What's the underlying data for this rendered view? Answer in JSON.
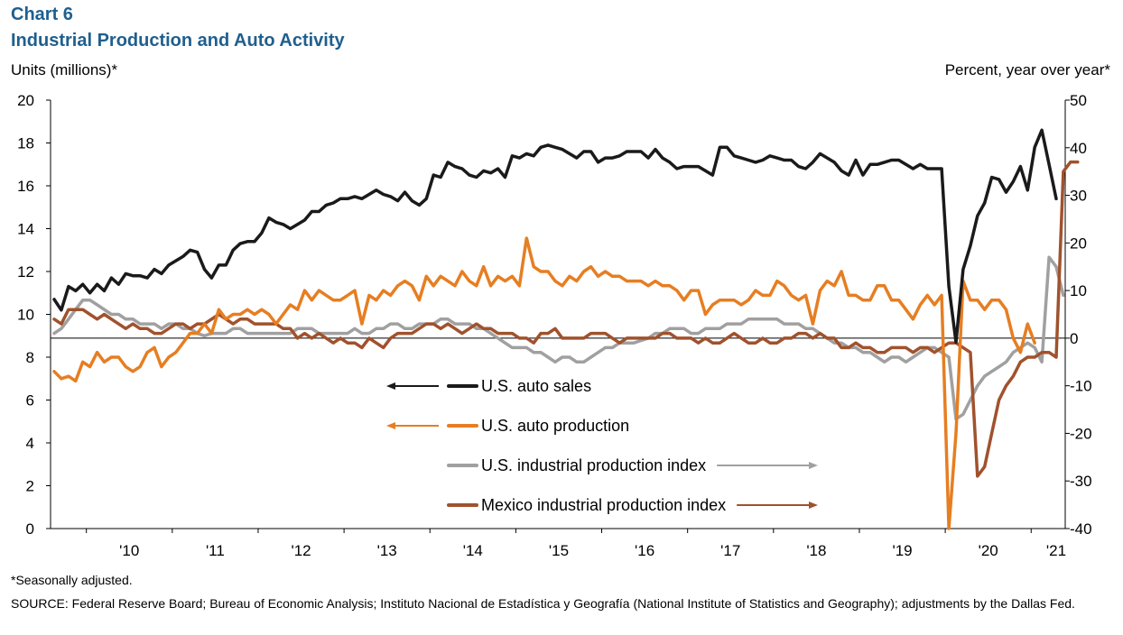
{
  "header": {
    "chart_number": "Chart 6",
    "title": "Industrial Production and Auto Activity",
    "left_axis_title": "Units (millions)*",
    "right_axis_title": "Percent, year over year*"
  },
  "footer": {
    "note": "*Seasonally adjusted.",
    "source": "SOURCE: Federal Reserve Board; Bureau of Economic Analysis; Instituto Nacional de Estadística y Geografía (National Institute of Statistics and Geography); adjustments by the Dallas Fed."
  },
  "chart_data": {
    "type": "line",
    "x_start": "2009-08",
    "x_end": "2021-01",
    "x_tick_labels": [
      "'10",
      "'11",
      "'12",
      "'13",
      "'14",
      "'15",
      "'16",
      "'17",
      "'18",
      "'19",
      "'20",
      "'21"
    ],
    "y_left": {
      "ylim": [
        0,
        20
      ],
      "ticks": [
        0,
        2,
        4,
        6,
        8,
        10,
        12,
        14,
        16,
        18,
        20
      ]
    },
    "y_right": {
      "ylim": [
        -40,
        50
      ],
      "ticks": [
        -40,
        -30,
        -20,
        -10,
        0,
        10,
        20,
        30,
        40,
        50
      ]
    },
    "series": [
      {
        "name": "U.S. auto sales",
        "axis": "left",
        "color": "#1a1a1a",
        "legend_arrow": "left",
        "legend_row": 0,
        "values": [
          10.7,
          10.2,
          11.3,
          11.1,
          11.4,
          11.0,
          11.4,
          11.1,
          11.7,
          11.4,
          11.9,
          11.8,
          11.8,
          11.7,
          12.1,
          11.9,
          12.3,
          12.5,
          12.7,
          13.0,
          12.9,
          12.1,
          11.7,
          12.3,
          12.3,
          13.0,
          13.3,
          13.4,
          13.4,
          13.8,
          14.5,
          14.3,
          14.2,
          14.0,
          14.2,
          14.4,
          14.8,
          14.8,
          15.1,
          15.2,
          15.4,
          15.4,
          15.5,
          15.4,
          15.6,
          15.8,
          15.6,
          15.5,
          15.3,
          15.7,
          15.3,
          15.1,
          15.4,
          16.5,
          16.4,
          17.1,
          16.9,
          16.8,
          16.5,
          16.4,
          16.7,
          16.6,
          16.8,
          16.4,
          17.4,
          17.3,
          17.5,
          17.4,
          17.8,
          17.9,
          17.8,
          17.7,
          17.5,
          17.3,
          17.6,
          17.6,
          17.1,
          17.3,
          17.3,
          17.4,
          17.6,
          17.6,
          17.6,
          17.3,
          17.7,
          17.3,
          17.1,
          16.8,
          16.9,
          16.9,
          16.9,
          16.7,
          16.5,
          17.8,
          17.8,
          17.4,
          17.3,
          17.2,
          17.1,
          17.2,
          17.4,
          17.3,
          17.2,
          17.2,
          16.9,
          16.8,
          17.1,
          17.5,
          17.3,
          17.1,
          16.7,
          16.5,
          17.2,
          16.5,
          17.0,
          17.0,
          17.1,
          17.2,
          17.2,
          17.0,
          16.8,
          17.0,
          16.8,
          16.8,
          16.8,
          11.3,
          8.7,
          12.1,
          13.2,
          14.6,
          15.2,
          16.4,
          16.3,
          15.7,
          16.2,
          16.9,
          15.8,
          17.8,
          18.6,
          17.0,
          15.4
        ]
      },
      {
        "name": "U.S. auto production",
        "axis": "right",
        "color": "#e67e22",
        "legend_arrow": "left",
        "legend_row": 1,
        "values": [
          -7,
          -8.5,
          -8,
          -9,
          -5,
          -6,
          -3,
          -5,
          -4,
          -4,
          -6,
          -7,
          -6,
          -3,
          -2,
          -6,
          -4,
          -3,
          -1,
          1,
          1,
          3,
          1,
          6,
          4,
          5,
          5,
          6,
          5,
          6,
          5,
          3,
          5,
          7,
          6,
          10,
          8,
          10,
          9,
          8,
          8,
          9,
          10,
          3,
          9,
          8,
          10,
          9,
          11,
          12,
          11,
          8,
          13,
          11,
          13,
          12,
          11,
          14,
          12,
          11,
          15,
          11,
          13,
          12,
          13,
          11,
          21,
          15,
          14,
          14,
          12,
          11,
          13,
          12,
          14,
          15,
          13,
          14,
          13,
          13,
          12,
          12,
          12,
          11,
          12,
          11,
          11,
          10,
          8,
          10,
          10,
          5,
          7,
          8,
          8,
          8,
          7,
          8,
          10,
          9,
          9,
          12,
          11,
          9,
          8,
          9,
          3,
          10,
          12,
          11,
          14,
          9,
          9,
          8,
          8,
          11,
          11,
          8,
          8,
          6,
          4,
          7,
          9,
          7,
          9,
          -40,
          -20,
          12,
          8,
          8,
          6,
          8,
          8,
          6,
          0,
          -3,
          3,
          -1
        ]
      },
      {
        "name": "U.S. industrial production index",
        "axis": "right",
        "color": "#a0a0a0",
        "legend_arrow": "right",
        "legend_row": 2,
        "values": [
          1,
          2,
          4,
          6,
          8,
          8,
          7,
          6,
          5,
          5,
          4,
          4,
          3,
          3,
          3,
          2,
          3,
          3,
          2,
          2,
          1,
          0.5,
          1,
          1,
          1,
          2,
          2,
          1,
          1,
          1,
          1,
          1,
          1,
          1,
          2,
          2,
          2,
          1,
          1,
          1,
          1,
          1,
          2,
          1,
          1,
          2,
          2,
          3,
          3,
          2,
          2,
          3,
          3,
          3,
          4,
          4,
          3,
          3,
          3,
          2,
          2,
          1,
          0,
          -1,
          -2,
          -2,
          -2,
          -3,
          -3,
          -4,
          -5,
          -4,
          -4,
          -5,
          -5,
          -4,
          -3,
          -2,
          -2,
          -1,
          -1,
          -1,
          -0.5,
          0,
          1,
          1,
          2,
          2,
          2,
          1,
          1,
          2,
          2,
          2,
          3,
          3,
          3,
          4,
          4,
          4,
          4,
          4,
          3,
          3,
          3,
          2,
          2,
          1,
          0,
          -1,
          -1,
          -2,
          -2,
          -3,
          -3,
          -4,
          -5,
          -4,
          -4,
          -5,
          -4,
          -3,
          -2,
          -2,
          -3,
          -4,
          -17,
          -16,
          -13,
          -10,
          -8,
          -7,
          -6,
          -5,
          -3,
          -2,
          -1,
          -2,
          -5,
          17,
          15,
          9
        ]
      },
      {
        "name": "Mexico industrial production index",
        "axis": "right",
        "color": "#a0522d",
        "legend_arrow": "right",
        "legend_row": 3,
        "values": [
          4,
          3,
          6,
          6,
          6,
          5,
          4,
          5,
          4,
          3,
          2,
          3,
          2,
          2,
          1,
          1,
          2,
          3,
          3,
          2,
          3,
          3,
          4,
          5,
          4,
          3,
          4,
          4,
          3,
          3,
          3,
          3,
          2,
          2,
          0,
          1,
          0,
          1,
          0,
          -1,
          0,
          -1,
          -1,
          -2,
          0,
          -1,
          -2,
          0,
          1,
          1,
          1,
          2,
          3,
          3,
          2,
          3,
          2,
          1,
          2,
          3,
          2,
          2,
          1,
          1,
          1,
          0,
          0,
          -1,
          1,
          1,
          2,
          0,
          0,
          0,
          0,
          1,
          1,
          1,
          0,
          -1,
          0,
          0,
          0,
          0,
          0,
          1,
          1,
          0,
          0,
          0,
          -1,
          0,
          -1,
          -1,
          0,
          1,
          0,
          -1,
          -1,
          0,
          -1,
          -1,
          0,
          0,
          1,
          1,
          0,
          1,
          0,
          0,
          -2,
          -2,
          -1,
          -2,
          -2,
          -3,
          -3,
          -2,
          -2,
          -2,
          -3,
          -2,
          -2,
          -3,
          -2,
          -1,
          -1,
          -2,
          -3,
          -29,
          -27,
          -20,
          -13,
          -10,
          -8,
          -5,
          -4,
          -4,
          -3,
          -3,
          -4,
          35,
          37,
          37
        ]
      }
    ]
  }
}
